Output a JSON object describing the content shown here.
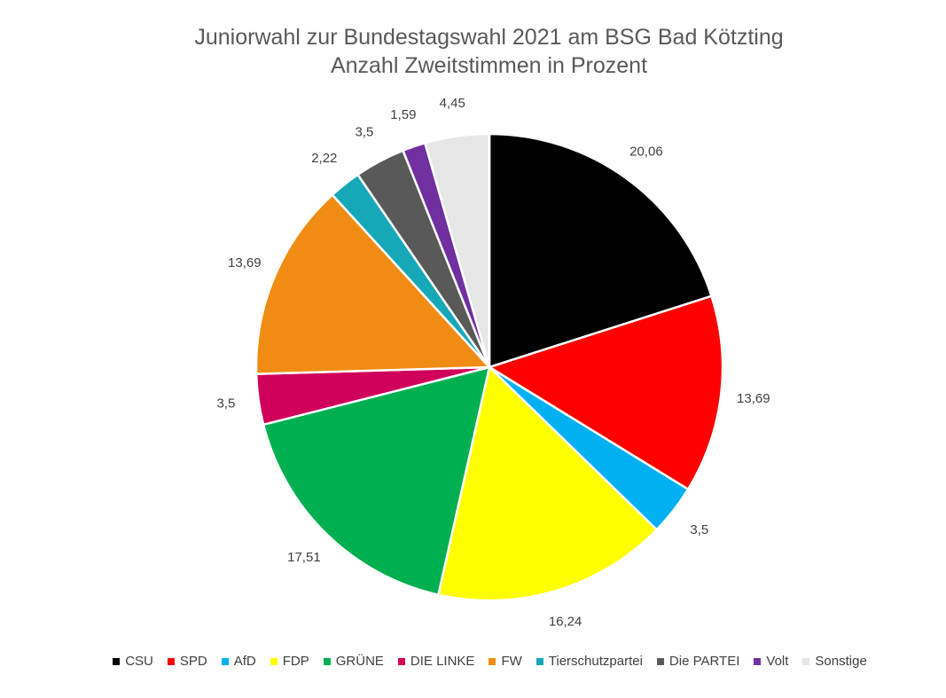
{
  "chart_data": {
    "type": "pie",
    "title": "Juniorwahl zur Bundestagswahl 2021 am BSG Bad Kötzting",
    "subtitle": "Anzahl Zweitstimmen in Prozent",
    "legend_position": "bottom",
    "slices": [
      {
        "label": "CSU",
        "value": 20.06,
        "display": "20,06",
        "color": "#000000"
      },
      {
        "label": "SPD",
        "value": 13.69,
        "display": "13,69",
        "color": "#ff0000"
      },
      {
        "label": "AfD",
        "value": 3.5,
        "display": "3,5",
        "color": "#00b0f0"
      },
      {
        "label": "FDP",
        "value": 16.24,
        "display": "16,24",
        "color": "#ffff00"
      },
      {
        "label": "GRÜNE",
        "value": 17.51,
        "display": "17,51",
        "color": "#00b050"
      },
      {
        "label": "DIE LINKE",
        "value": 3.5,
        "display": "3,5",
        "color": "#d0005a"
      },
      {
        "label": "FW",
        "value": 13.69,
        "display": "13,69",
        "color": "#f08c14"
      },
      {
        "label": "Tierschutzpartei",
        "value": 2.22,
        "display": "2,22",
        "color": "#17a8b8"
      },
      {
        "label": "Die PARTEI",
        "value": 3.5,
        "display": "3,5",
        "color": "#595959"
      },
      {
        "label": "Volt",
        "value": 1.59,
        "display": "1,59",
        "color": "#7030a0"
      },
      {
        "label": "Sonstige",
        "value": 4.45,
        "display": "4,45",
        "color": "#e6e6e6"
      }
    ]
  }
}
